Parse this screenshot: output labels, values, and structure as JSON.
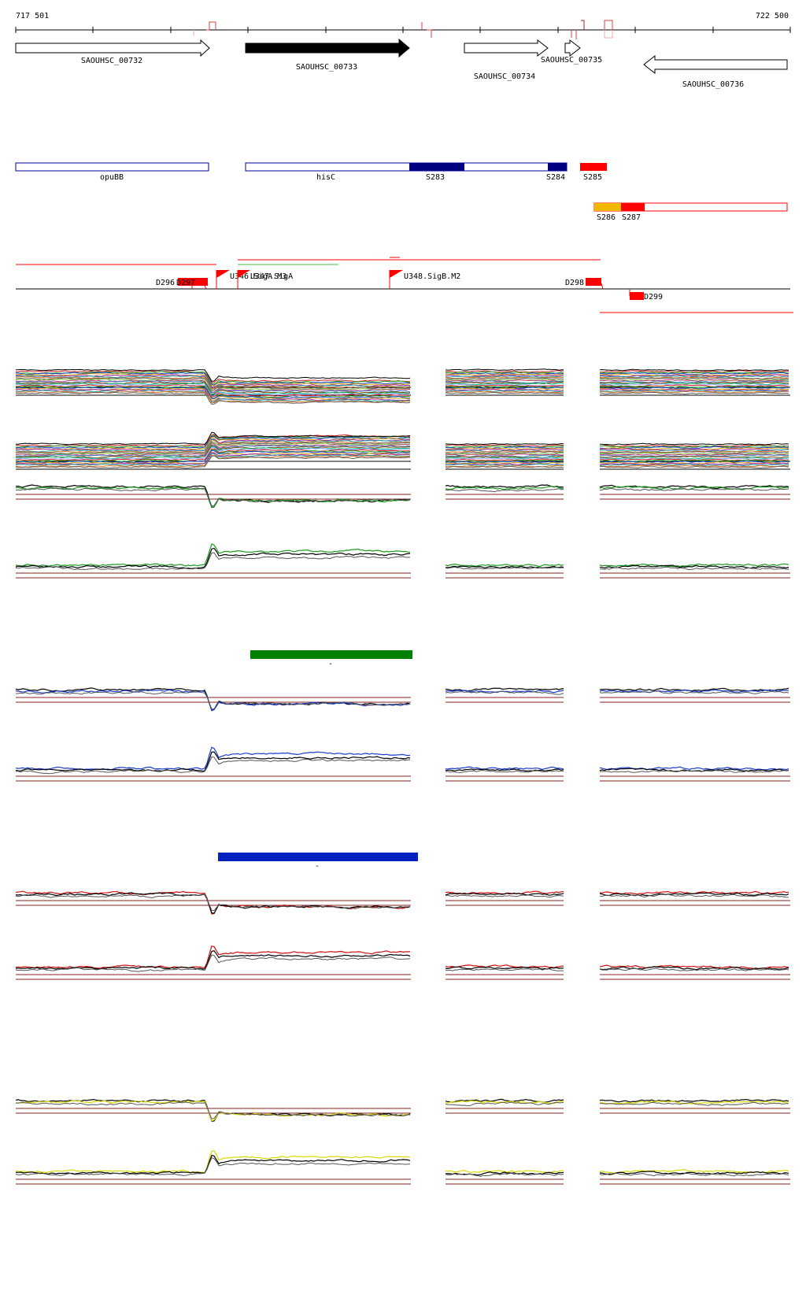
{
  "coords": {
    "start": "717 501",
    "end": "722 500"
  },
  "genes": [
    {
      "id": "SAOUHSC_00732",
      "strand": "+",
      "filled": false
    },
    {
      "id": "SAOUHSC_00733",
      "strand": "+",
      "filled": true
    },
    {
      "id": "SAOUHSC_00734",
      "strand": "+",
      "filled": false
    },
    {
      "id": "SAOUHSC_00735",
      "strand": "+",
      "filled": false
    },
    {
      "id": "SAOUHSC_00736",
      "strand": "-",
      "filled": false
    }
  ],
  "features": [
    {
      "label": "opuBB",
      "kind": "gene"
    },
    {
      "label": "hisC",
      "kind": "gene"
    },
    {
      "label": "S283",
      "kind": "segment"
    },
    {
      "label": "S284",
      "kind": "segment"
    },
    {
      "label": "S285",
      "kind": "segment"
    },
    {
      "label": "S286",
      "kind": "segment"
    },
    {
      "label": "S287",
      "kind": "segment"
    }
  ],
  "regulatory": [
    {
      "label": "D296",
      "kind": "terminator"
    },
    {
      "label": "D297",
      "kind": "terminator"
    },
    {
      "label": "U346.SigA.M3",
      "kind": "promoter"
    },
    {
      "label": "U347.SigA",
      "kind": "promoter"
    },
    {
      "label": "U348.SigB.M2",
      "kind": "promoter"
    },
    {
      "label": "D298",
      "kind": "terminator"
    },
    {
      "label": "D299",
      "kind": "terminator"
    }
  ],
  "bar_labels": {
    "green": "-",
    "blue": "-"
  },
  "colors": {
    "gene_outline": "#000000",
    "feature_blue": "#0000a0",
    "segment_red": "#ff0000",
    "segment_orange": "#f5b800",
    "green_bar": "#008000",
    "blue_bar": "#0020c0",
    "baseline": "#8b2020",
    "trace_black": "#000000",
    "trace_green": "#1a9a1a",
    "trace_blue": "#1a3cd0",
    "trace_red": "#d01010",
    "trace_yellow": "#d8d800"
  }
}
